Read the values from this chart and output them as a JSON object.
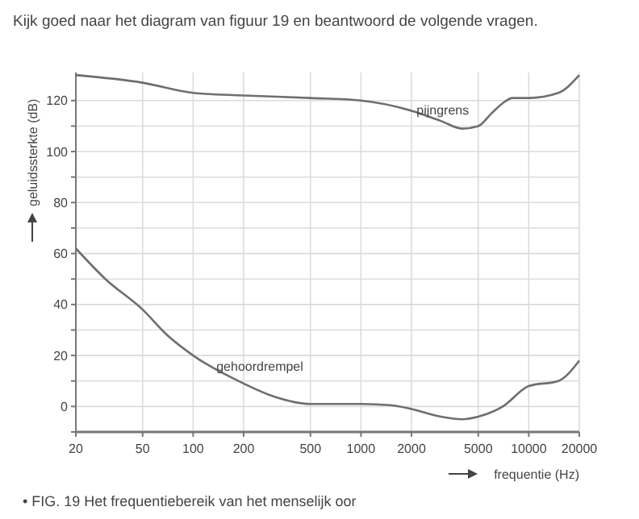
{
  "chart_data": {
    "type": "line",
    "title": "Kijk goed naar het diagram van figuur 19 en beantwoord de volgende vragen.",
    "xlabel": "frequentie (Hz)",
    "ylabel": "geluidssterkte (dB)",
    "annotations": [
      "• FIG. 19 Het frequentiebereik van het menselijk oor"
    ],
    "log": "x",
    "grid": true,
    "line_style": "solid",
    "marker": "none",
    "xlim": [
      20,
      20000
    ],
    "xticks": [
      20,
      50,
      100,
      200,
      500,
      1000,
      2000,
      5000,
      10000,
      20000
    ],
    "ylim": [
      -10,
      131
    ],
    "yticks": [
      {
        "value": -10,
        "label": null
      },
      0,
      {
        "value": 10,
        "label": null
      },
      20,
      {
        "value": 30,
        "label": null
      },
      40,
      {
        "value": 50,
        "label": null
      },
      60,
      {
        "value": 70,
        "label": null
      },
      80,
      {
        "value": 90,
        "label": null
      },
      100,
      {
        "value": 110,
        "label": null
      },
      120
    ],
    "series": [
      {
        "name": "pijngrens",
        "color": "#6e6e6e",
        "x": [
          20,
          50,
          100,
          200,
          500,
          1000,
          2000,
          3000,
          4000,
          5000,
          6000,
          7000,
          8000,
          10000,
          15000,
          20000
        ],
        "values": [
          130,
          127,
          123,
          122,
          121,
          120,
          116,
          112,
          109,
          110,
          115,
          119,
          121,
          121,
          123,
          130
        ]
      },
      {
        "name": "gehoordrempel",
        "color": "#6e6e6e",
        "x": [
          20,
          30,
          50,
          70,
          100,
          200,
          300,
          500,
          1000,
          1500,
          2000,
          3000,
          4000,
          5000,
          7000,
          10000,
          15000,
          20000
        ],
        "values": [
          62,
          50,
          38,
          28,
          20,
          9,
          4,
          1,
          1,
          0.5,
          -1,
          -4,
          -5,
          -4,
          0,
          8,
          10,
          18
        ]
      }
    ]
  }
}
